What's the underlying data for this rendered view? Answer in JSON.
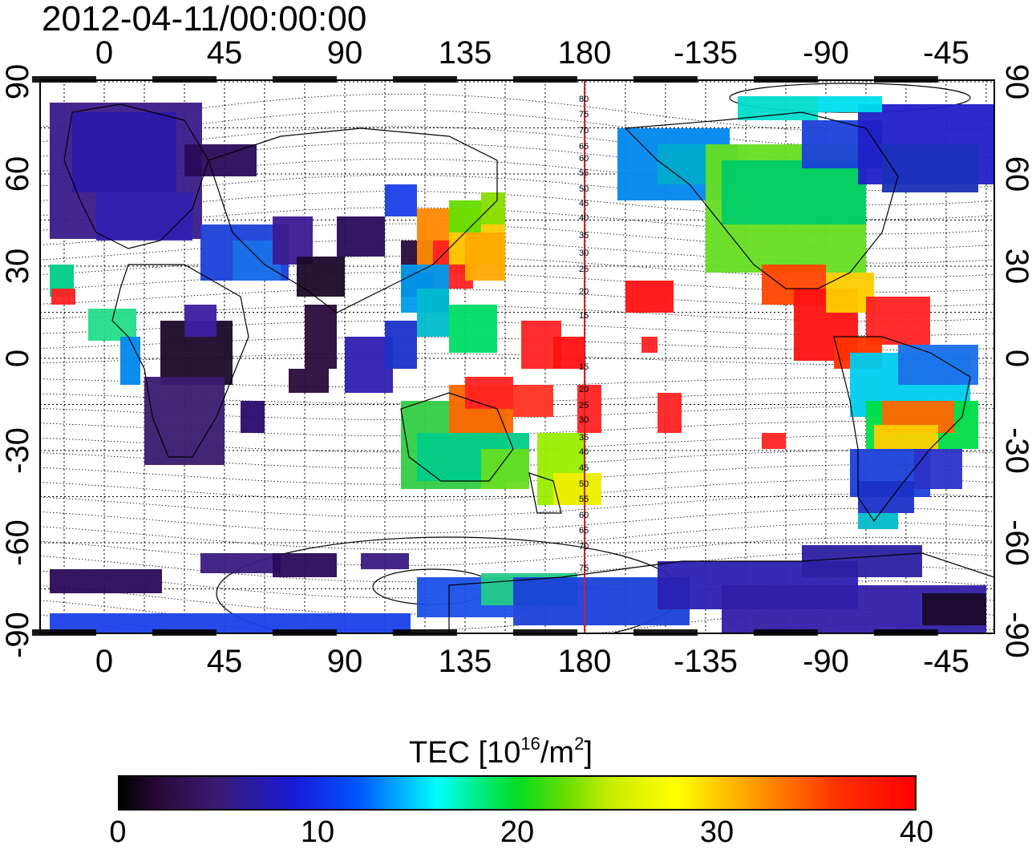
{
  "timestamp": "2012-04-11/00:00:00",
  "map": {
    "lon_ticks_top": [
      "0",
      "45",
      "90",
      "135",
      "180",
      "-135",
      "-90",
      "-45"
    ],
    "lon_ticks_bottom": [
      "0",
      "45",
      "90",
      "135",
      "180",
      "-135",
      "-90",
      "-45"
    ],
    "lat_ticks_left": [
      "90",
      "60",
      "30",
      "0",
      "-30",
      "-60",
      "-90"
    ],
    "lat_ticks_right": [
      "90",
      "60",
      "30",
      "0",
      "-30",
      "-60",
      "-90"
    ],
    "meridian_labels": [
      "80",
      "75",
      "70",
      "65",
      "60",
      "55",
      "50",
      "45",
      "40",
      "35",
      "30",
      "25",
      "20",
      "15",
      "15",
      "20",
      "25",
      "30",
      "35",
      "40",
      "45",
      "50",
      "55",
      "60",
      "65",
      "70",
      "75"
    ],
    "meridian_color": "#cc2222"
  },
  "colorbar": {
    "title_prefix": "TEC  [10",
    "title_exp1": "16",
    "title_mid": "/m",
    "title_exp2": "2",
    "title_suffix": "]",
    "ticks": [
      "0",
      "10",
      "20",
      "30",
      "40"
    ]
  }
}
